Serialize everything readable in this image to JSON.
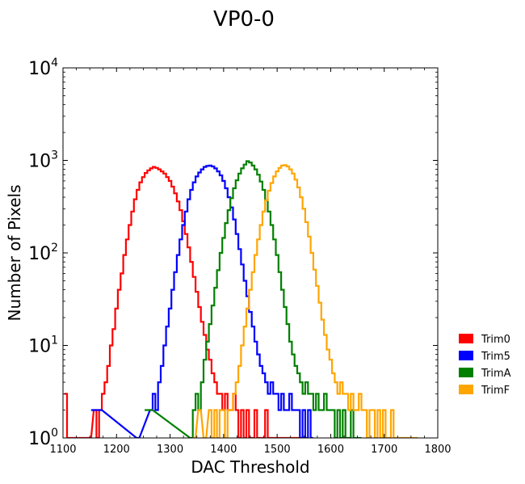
{
  "chart_data": {
    "type": "line",
    "title": "VP0-0",
    "xlabel": "DAC Threshold",
    "ylabel": "Number of Pixels",
    "xlim": [
      1100,
      1800
    ],
    "ylim": [
      1,
      10000
    ],
    "yscale": "log",
    "grid": false,
    "legend_position": "right",
    "x_ticks": [
      1100,
      1200,
      1300,
      1400,
      1500,
      1600,
      1700,
      1800
    ],
    "y_ticks": [
      {
        "base": "10",
        "exp": "0",
        "value": 1
      },
      {
        "base": "10",
        "exp": "1",
        "value": 10
      },
      {
        "base": "10",
        "exp": "2",
        "value": 100
      },
      {
        "base": "10",
        "exp": "3",
        "value": 1000
      },
      {
        "base": "10",
        "exp": "4",
        "value": 10000
      }
    ],
    "series": [
      {
        "name": "Trim0",
        "color": "#ff0000",
        "x": [
          1105,
          1110,
          1150,
          1160,
          1165,
          1170,
          1175,
          1180,
          1185,
          1190,
          1195,
          1200,
          1205,
          1210,
          1215,
          1220,
          1225,
          1230,
          1235,
          1240,
          1245,
          1250,
          1255,
          1260,
          1265,
          1270,
          1275,
          1280,
          1285,
          1290,
          1295,
          1300,
          1305,
          1310,
          1315,
          1320,
          1325,
          1330,
          1335,
          1340,
          1345,
          1350,
          1355,
          1360,
          1365,
          1370,
          1375,
          1380,
          1385,
          1390,
          1395,
          1400,
          1405,
          1410,
          1415,
          1420,
          1425,
          1430,
          1435,
          1440,
          1445,
          1450,
          1455,
          1460,
          1465,
          1470,
          1475,
          1480,
          1485,
          1490,
          1495,
          1500,
          1505,
          1510,
          1515,
          1520,
          1525,
          1530,
          1535,
          1540,
          1545,
          1550
        ],
        "y": [
          3,
          1,
          1,
          2,
          1,
          2,
          3,
          4,
          6,
          10,
          15,
          25,
          40,
          60,
          95,
          140,
          200,
          280,
          380,
          480,
          580,
          660,
          730,
          780,
          820,
          850,
          830,
          800,
          760,
          720,
          660,
          600,
          520,
          440,
          360,
          290,
          220,
          160,
          115,
          80,
          55,
          38,
          26,
          18,
          13,
          9,
          7,
          5,
          4,
          3,
          3,
          2,
          3,
          2,
          2,
          3,
          2,
          1,
          2,
          1,
          2,
          1,
          1,
          2,
          1,
          1,
          1,
          2,
          1,
          1,
          1,
          1,
          1,
          1,
          1,
          1,
          1,
          1,
          1,
          1,
          1,
          1
        ]
      },
      {
        "name": "Trim5",
        "color": "#0000ff",
        "x": [
          1155,
          1170,
          1240,
          1265,
          1270,
          1275,
          1280,
          1285,
          1290,
          1295,
          1300,
          1305,
          1310,
          1315,
          1320,
          1325,
          1330,
          1335,
          1340,
          1345,
          1350,
          1355,
          1360,
          1365,
          1370,
          1375,
          1380,
          1385,
          1390,
          1395,
          1400,
          1405,
          1410,
          1415,
          1420,
          1425,
          1430,
          1435,
          1440,
          1445,
          1450,
          1455,
          1460,
          1465,
          1470,
          1475,
          1480,
          1485,
          1490,
          1495,
          1500,
          1505,
          1510,
          1515,
          1520,
          1525,
          1530,
          1535,
          1540,
          1545,
          1550,
          1555,
          1560,
          1565
        ],
        "y": [
          2,
          2,
          1,
          2,
          3,
          2,
          4,
          6,
          10,
          16,
          25,
          40,
          62,
          95,
          140,
          200,
          280,
          380,
          480,
          580,
          670,
          740,
          800,
          850,
          870,
          880,
          860,
          820,
          760,
          690,
          600,
          500,
          400,
          310,
          230,
          160,
          110,
          75,
          50,
          34,
          23,
          16,
          11,
          8,
          6,
          5,
          4,
          3,
          4,
          3,
          3,
          2,
          3,
          2,
          2,
          3,
          2,
          2,
          2,
          1,
          2,
          1,
          2,
          1
        ]
      },
      {
        "name": "TrimA",
        "color": "#008000",
        "x": [
          1255,
          1265,
          1340,
          1345,
          1350,
          1355,
          1360,
          1365,
          1370,
          1375,
          1380,
          1385,
          1390,
          1395,
          1400,
          1405,
          1410,
          1415,
          1420,
          1425,
          1430,
          1435,
          1440,
          1445,
          1450,
          1455,
          1460,
          1465,
          1470,
          1475,
          1480,
          1485,
          1490,
          1495,
          1500,
          1505,
          1510,
          1515,
          1520,
          1525,
          1530,
          1535,
          1540,
          1545,
          1550,
          1555,
          1560,
          1565,
          1570,
          1575,
          1580,
          1585,
          1590,
          1595,
          1600,
          1605,
          1610,
          1615,
          1620,
          1625,
          1630,
          1635,
          1640,
          1645,
          1650,
          1655
        ],
        "y": [
          2,
          2,
          1,
          2,
          3,
          2,
          4,
          7,
          11,
          17,
          27,
          42,
          65,
          100,
          145,
          210,
          290,
          390,
          500,
          610,
          720,
          820,
          900,
          980,
          950,
          880,
          800,
          700,
          590,
          480,
          370,
          280,
          200,
          140,
          95,
          62,
          40,
          26,
          17,
          11,
          8,
          6,
          5,
          4,
          3,
          4,
          3,
          3,
          2,
          3,
          2,
          2,
          3,
          2,
          2,
          2,
          1,
          2,
          1,
          2,
          1,
          1,
          2,
          1,
          1,
          1
        ]
      },
      {
        "name": "TrimF",
        "color": "#ffa500",
        "x": [
          1345,
          1355,
          1365,
          1375,
          1380,
          1385,
          1390,
          1395,
          1400,
          1405,
          1410,
          1415,
          1420,
          1425,
          1430,
          1435,
          1440,
          1445,
          1450,
          1455,
          1460,
          1465,
          1470,
          1475,
          1480,
          1485,
          1490,
          1495,
          1500,
          1505,
          1510,
          1515,
          1520,
          1525,
          1530,
          1535,
          1540,
          1545,
          1550,
          1555,
          1560,
          1565,
          1570,
          1575,
          1580,
          1585,
          1590,
          1595,
          1600,
          1605,
          1610,
          1615,
          1620,
          1625,
          1630,
          1635,
          1640,
          1645,
          1650,
          1655,
          1660,
          1665,
          1670,
          1675,
          1680,
          1685,
          1690,
          1695,
          1700,
          1705,
          1710,
          1715,
          1720,
          1725,
          1730,
          1735,
          1740,
          1745,
          1750,
          1755,
          1760
        ],
        "y": [
          1,
          2,
          1,
          2,
          1,
          2,
          1,
          2,
          2,
          1,
          2,
          2,
          3,
          4,
          6,
          10,
          16,
          25,
          40,
          62,
          95,
          140,
          200,
          280,
          370,
          470,
          570,
          670,
          760,
          830,
          880,
          890,
          860,
          800,
          720,
          620,
          510,
          400,
          300,
          215,
          150,
          100,
          66,
          44,
          29,
          19,
          13,
          9,
          7,
          5,
          4,
          3,
          4,
          3,
          3,
          2,
          3,
          2,
          2,
          3,
          2,
          2,
          1,
          2,
          2,
          1,
          2,
          1,
          2,
          1,
          1,
          2,
          1,
          1,
          1,
          1,
          1,
          1,
          1,
          1,
          1
        ]
      }
    ]
  }
}
